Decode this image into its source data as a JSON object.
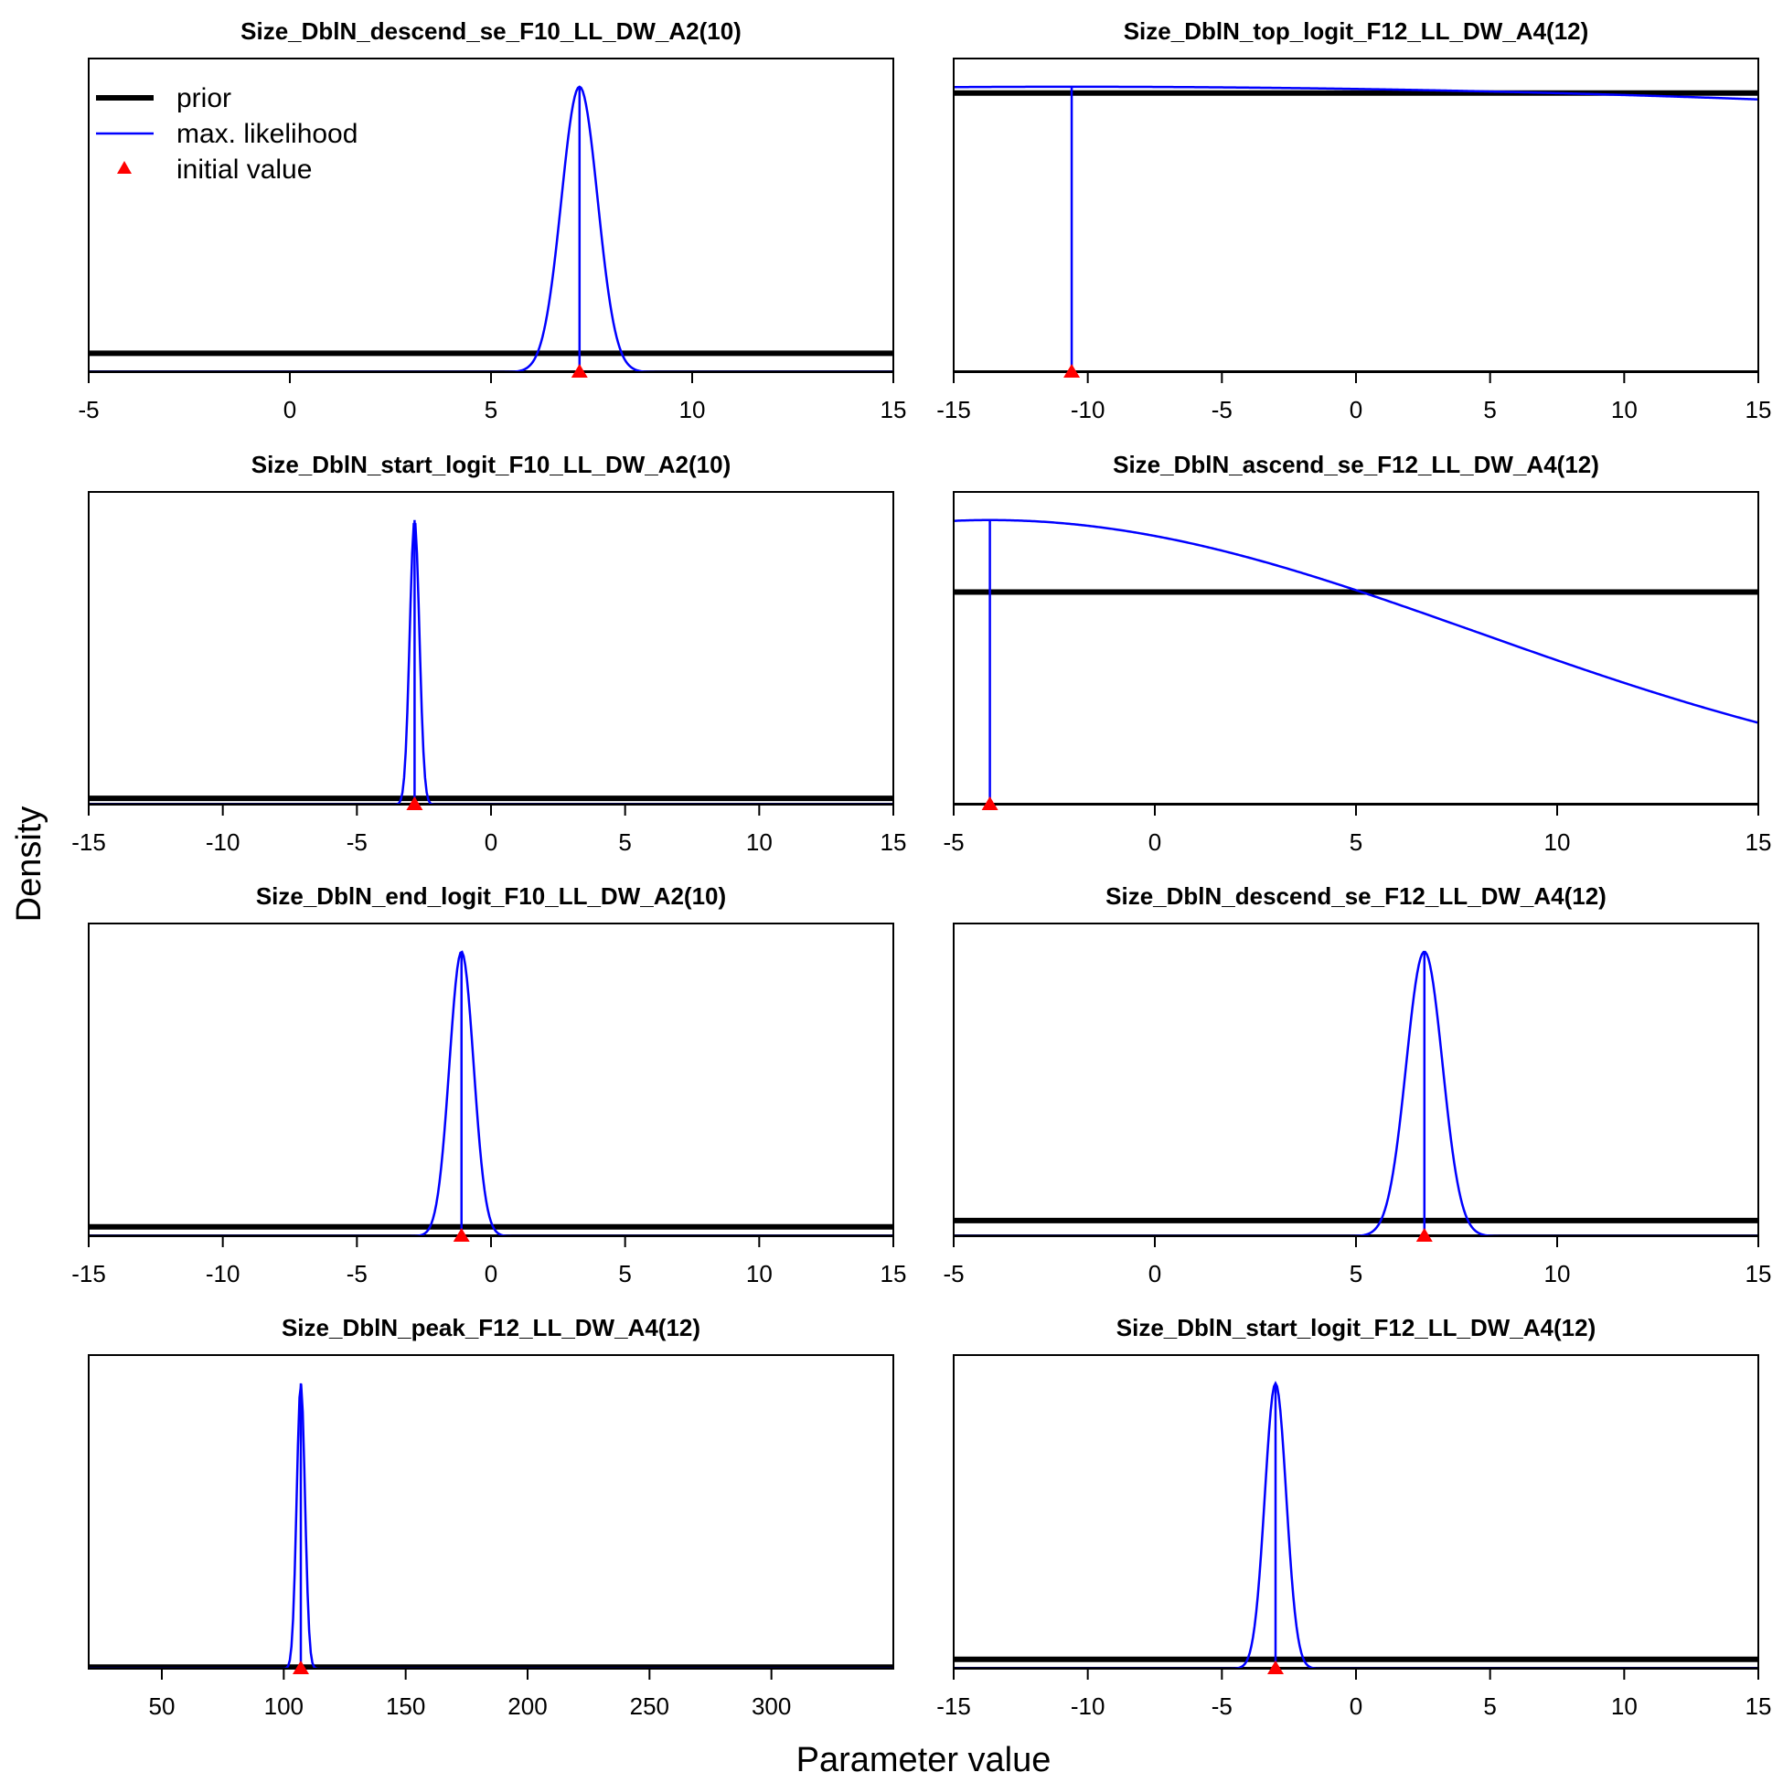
{
  "figure": {
    "xlabel": "Parameter value",
    "ylabel": "Density"
  },
  "legend": {
    "position": "top-left of first panel",
    "items": [
      {
        "label": "prior",
        "kind": "line",
        "color": "#000000"
      },
      {
        "label": "max. likelihood",
        "kind": "line",
        "color": "#0000ff"
      },
      {
        "label": "initial value",
        "kind": "triangle",
        "color": "#ff0000"
      }
    ]
  },
  "colors": {
    "prior": "#000000",
    "likelihood": "#0000ff",
    "initial": "#ff0000"
  },
  "chart_data": [
    {
      "type": "line",
      "title": "Size_DblN_descend_se_F10_LL_DW_A2(10)",
      "xlim": [
        -5,
        15
      ],
      "xticks": [
        -5,
        0,
        5,
        10,
        15
      ],
      "prior_level": 0.06,
      "likelihood": {
        "shape": "normal",
        "mean": 7.2,
        "sd": 0.45,
        "peak": 0.91
      },
      "mle_line": {
        "x": 7.2,
        "top": 0.91
      },
      "initial_value": 7.2
    },
    {
      "type": "line",
      "title": "Size_DblN_top_logit_F12_LL_DW_A4(12)",
      "xlim": [
        -15,
        15
      ],
      "xticks": [
        -15,
        -10,
        -5,
        0,
        5,
        10,
        15
      ],
      "prior_level": 0.89,
      "likelihood": {
        "shape": "normal",
        "mean": -10.6,
        "sd": 85,
        "peak": 0.91
      },
      "mle_line": {
        "x": -10.6,
        "top": 0.91
      },
      "initial_value": -10.6
    },
    {
      "type": "line",
      "title": "Size_DblN_start_logit_F10_LL_DW_A2(10)",
      "xlim": [
        -15,
        15
      ],
      "xticks": [
        -15,
        -10,
        -5,
        0,
        5,
        10,
        15
      ],
      "prior_level": 0.02,
      "likelihood": {
        "shape": "normal",
        "mean": -2.85,
        "sd": 0.18,
        "peak": 0.91
      },
      "mle_line": {
        "x": -2.85,
        "top": 0.91
      },
      "initial_value": -2.85
    },
    {
      "type": "line",
      "title": "Size_DblN_ascend_se_F12_LL_DW_A4(12)",
      "xlim": [
        -5,
        15
      ],
      "xticks": [
        -5,
        0,
        5,
        10,
        15
      ],
      "prior_level": 0.68,
      "likelihood": {
        "shape": "normal",
        "mean": -4.1,
        "sd": 12.1,
        "peak": 0.91
      },
      "mle_line": {
        "x": -4.1,
        "top": 0.91
      },
      "initial_value": -4.1
    },
    {
      "type": "line",
      "title": "Size_DblN_end_logit_F10_LL_DW_A2(10)",
      "xlim": [
        -15,
        15
      ],
      "xticks": [
        -15,
        -10,
        -5,
        0,
        5,
        10,
        15
      ],
      "prior_level": 0.03,
      "likelihood": {
        "shape": "normal",
        "mean": -1.1,
        "sd": 0.45,
        "peak": 0.91
      },
      "mle_line": {
        "x": -1.1,
        "top": 0.91
      },
      "initial_value": -1.1
    },
    {
      "type": "line",
      "title": "Size_DblN_descend_se_F12_LL_DW_A4(12)",
      "xlim": [
        -5,
        15
      ],
      "xticks": [
        -5,
        0,
        5,
        10,
        15
      ],
      "prior_level": 0.05,
      "likelihood": {
        "shape": "normal",
        "mean": 6.7,
        "sd": 0.45,
        "peak": 0.91
      },
      "mle_line": {
        "x": 6.7,
        "top": 0.91
      },
      "initial_value": 6.7
    },
    {
      "type": "line",
      "title": "Size_DblN_peak_F12_LL_DW_A4(12)",
      "xlim": [
        20,
        350
      ],
      "xticks": [
        50,
        100,
        150,
        200,
        250,
        300
      ],
      "prior_level": 0.005,
      "likelihood": {
        "shape": "normal",
        "mean": 107,
        "sd": 1.7,
        "peak": 0.91
      },
      "mle_line": {
        "x": 107,
        "top": 0.91
      },
      "initial_value": 107
    },
    {
      "type": "line",
      "title": "Size_DblN_start_logit_F12_LL_DW_A4(12)",
      "xlim": [
        -15,
        15
      ],
      "xticks": [
        -15,
        -10,
        -5,
        0,
        5,
        10,
        15
      ],
      "prior_level": 0.03,
      "likelihood": {
        "shape": "normal",
        "mean": -3.0,
        "sd": 0.4,
        "peak": 0.91
      },
      "mle_line": {
        "x": -3.0,
        "top": 0.91
      },
      "initial_value": -3.0
    }
  ]
}
